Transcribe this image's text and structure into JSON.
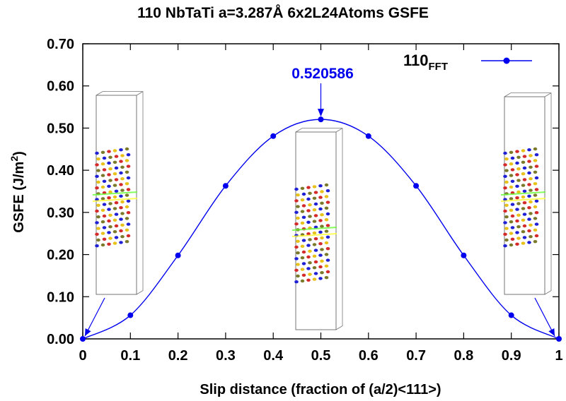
{
  "chart_data": {
    "type": "line",
    "title": "110 NbTaTi a=3.287Å 6x2L24Atoms GSFE",
    "xlabel": "Slip distance (fraction of (a/2)<111>)",
    "ylabel_main": "GSFE (J/m",
    "ylabel_sup": "2",
    "ylabel_end": ")",
    "xlim": [
      0,
      1
    ],
    "ylim": [
      0,
      0.7
    ],
    "x_ticks": [
      0,
      0.1,
      0.2,
      0.3,
      0.4,
      0.5,
      0.6,
      0.7,
      0.8,
      0.9,
      1
    ],
    "x_tick_labels": [
      "0",
      "0.1",
      "0.2",
      "0.3",
      "0.4",
      "0.5",
      "0.6",
      "0.7",
      "0.8",
      "0.9",
      "1"
    ],
    "y_ticks": [
      0,
      0.1,
      0.2,
      0.3,
      0.4,
      0.5,
      0.6,
      0.7
    ],
    "y_tick_labels": [
      "0.00",
      "0.10",
      "0.20",
      "0.30",
      "0.40",
      "0.50",
      "0.60",
      "0.70"
    ],
    "grid": false,
    "legend_position": "top-right",
    "series": [
      {
        "name_main": "110",
        "name_sub": "FFT",
        "color": "#0000ee",
        "x": [
          0,
          0.1,
          0.2,
          0.3,
          0.4,
          0.5,
          0.6,
          0.7,
          0.8,
          0.9,
          1
        ],
        "values": [
          0.0,
          0.056,
          0.198,
          0.363,
          0.481,
          0.5206,
          0.481,
          0.363,
          0.198,
          0.056,
          0.0
        ]
      }
    ],
    "peak_annotation": {
      "text": "0.520586",
      "x": 0.5,
      "y": 0.520586,
      "color": "#0000ee"
    }
  }
}
